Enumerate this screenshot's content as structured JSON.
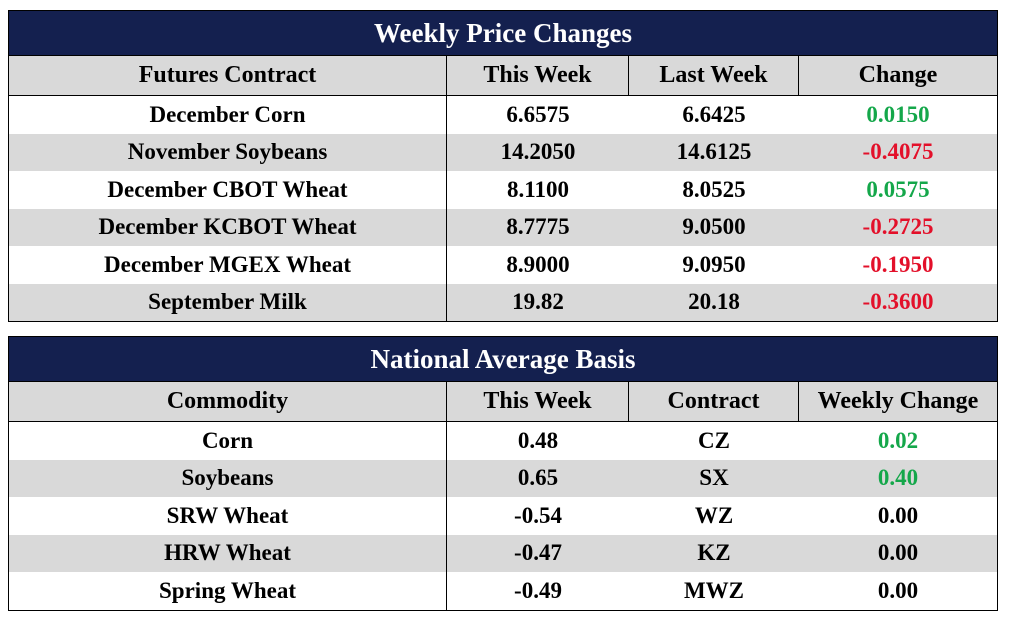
{
  "price_table": {
    "title": "Weekly Price Changes",
    "headers": [
      "Futures Contract",
      "This Week",
      "Last Week",
      "Change"
    ],
    "rows": [
      {
        "contract": "December Corn",
        "this_week": "6.6575",
        "last_week": "6.6425",
        "change": "0.0150",
        "trend": "pos"
      },
      {
        "contract": "November Soybeans",
        "this_week": "14.2050",
        "last_week": "14.6125",
        "change": "-0.4075",
        "trend": "neg"
      },
      {
        "contract": "December CBOT Wheat",
        "this_week": "8.1100",
        "last_week": "8.0525",
        "change": "0.0575",
        "trend": "pos"
      },
      {
        "contract": "December KCBOT Wheat",
        "this_week": "8.7775",
        "last_week": "9.0500",
        "change": "-0.2725",
        "trend": "neg"
      },
      {
        "contract": "December MGEX Wheat",
        "this_week": "8.9000",
        "last_week": "9.0950",
        "change": "-0.1950",
        "trend": "neg"
      },
      {
        "contract": "September Milk",
        "this_week": "19.82",
        "last_week": "20.18",
        "change": "-0.3600",
        "trend": "neg"
      }
    ]
  },
  "basis_table": {
    "title": "National Average Basis",
    "headers": [
      "Commodity",
      "This Week",
      "Contract",
      "Weekly Change"
    ],
    "rows": [
      {
        "commodity": "Corn",
        "this_week": "0.48",
        "contract": "CZ",
        "change": "0.02",
        "trend": "pos"
      },
      {
        "commodity": "Soybeans",
        "this_week": "0.65",
        "contract": "SX",
        "change": "0.40",
        "trend": "pos"
      },
      {
        "commodity": "SRW Wheat",
        "this_week": "-0.54",
        "contract": "WZ",
        "change": "0.00",
        "trend": "neu"
      },
      {
        "commodity": "HRW Wheat",
        "this_week": "-0.47",
        "contract": "KZ",
        "change": "0.00",
        "trend": "neu"
      },
      {
        "commodity": "Spring Wheat",
        "this_week": "-0.49",
        "contract": "MWZ",
        "change": "0.00",
        "trend": "neu"
      }
    ]
  },
  "colors": {
    "header_bg": "#14204f",
    "row_shade": "#d9d9d9",
    "positive": "#14a74a",
    "negative": "#e3102a"
  }
}
